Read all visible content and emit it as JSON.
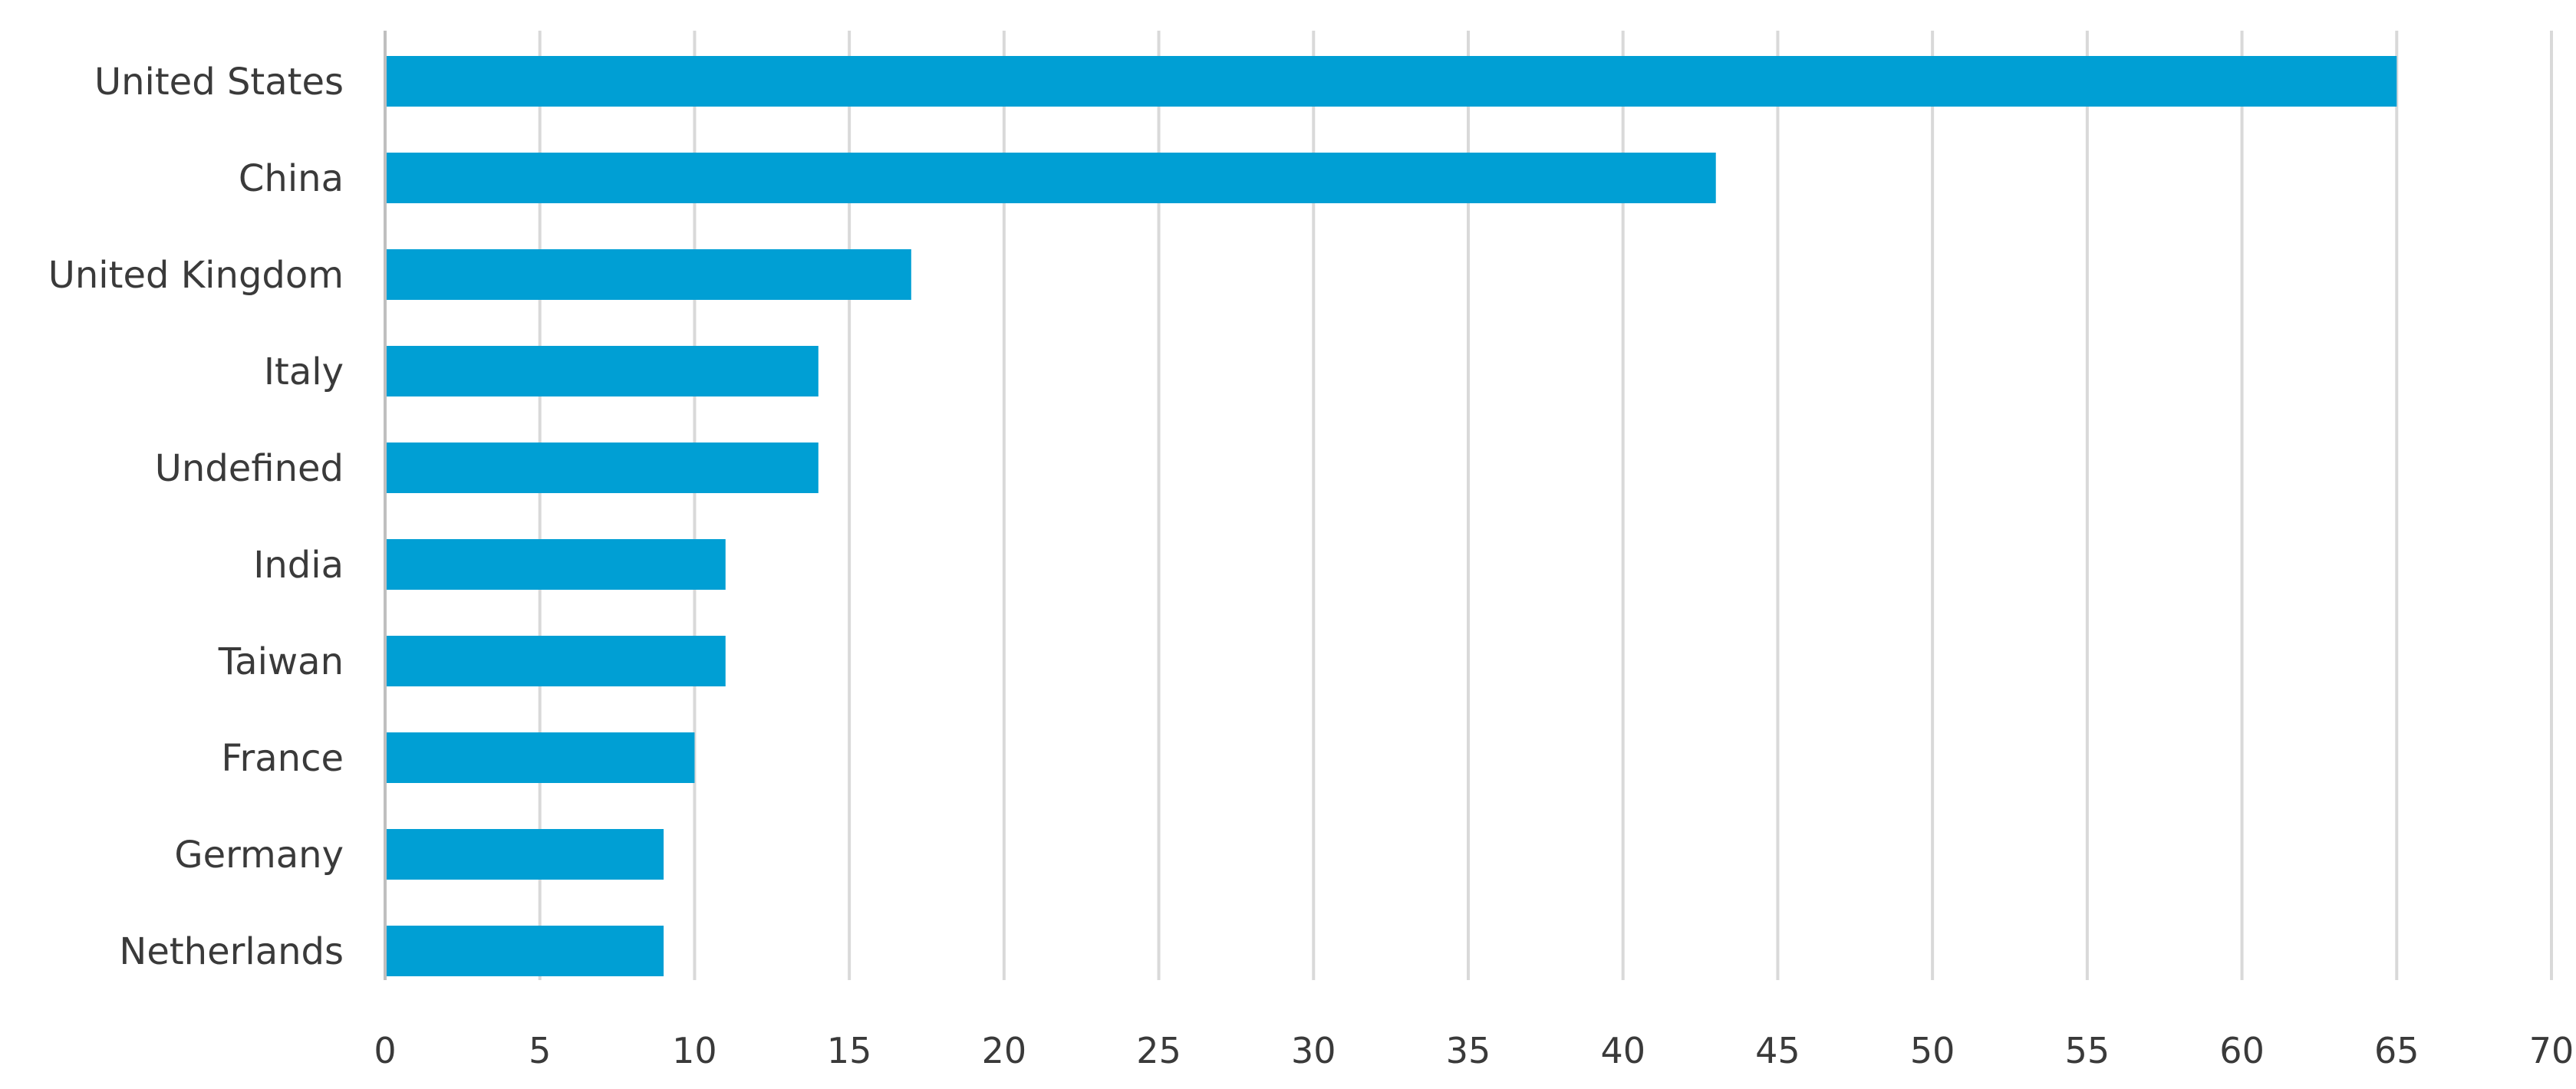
{
  "chart_data": {
    "type": "bar",
    "orientation": "horizontal",
    "categories": [
      "United States",
      "China",
      "United Kingdom",
      "Italy",
      "Undefined",
      "India",
      "Taiwan",
      "France",
      "Germany",
      "Netherlands"
    ],
    "values": [
      65,
      43,
      17,
      14,
      14,
      11,
      11,
      10,
      9,
      9
    ],
    "xlim": [
      0,
      70
    ],
    "x_ticks": [
      "0",
      "5",
      "10",
      "15",
      "20",
      "25",
      "30",
      "35",
      "40",
      "45",
      "50",
      "55",
      "60",
      "65",
      "70"
    ],
    "grid": "vertical",
    "bar_color": "#009fd4",
    "grid_color": "#d9d9d9",
    "axis_color": "#bfbfbf",
    "title": "",
    "xlabel": "",
    "ylabel": ""
  }
}
